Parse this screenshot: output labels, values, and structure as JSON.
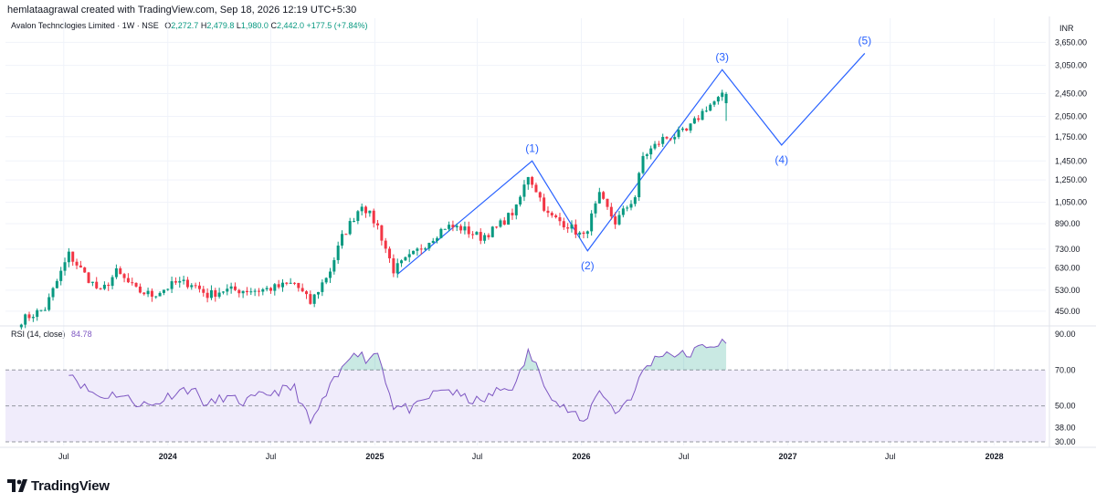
{
  "header": {
    "credit": "hemlataagrawal created with TradingView.com, Sep 18, 2026 12:19 UTC+5:30"
  },
  "legend": {
    "title": "Avalon Technologies Limited · 1W · NSE",
    "o_label": "O",
    "o_value": "2,272.7",
    "h_label": "H",
    "h_value": "2,479.8",
    "l_label": "L",
    "l_value": "1,980.0",
    "c_label": "C",
    "c_value": "2,442.0",
    "change": "+177.5 (+7.84%)"
  },
  "currency": "INR",
  "rsi": {
    "label": "RSI (14, close)",
    "value": "84.78"
  },
  "brand": {
    "name": "TradingView"
  },
  "colors": {
    "up": "#089981",
    "down": "#f23645",
    "rsi_line": "#7e57c2",
    "rsi_band": "#f0ecfb",
    "wave": "#2962ff",
    "grid": "#f0f3fa"
  },
  "chart_data": [
    {
      "type": "candlestick",
      "title": "Avalon Technologies Limited · 1W · NSE",
      "scale": "log",
      "ylim": [
        410,
        4100
      ],
      "y_ticks": [
        450,
        530,
        630,
        730,
        890,
        1050,
        1250,
        1450,
        1750,
        2050,
        2450,
        3050,
        3650
      ],
      "y_tick_labels": [
        "450.00",
        "530.00",
        "630.00",
        "730.00",
        "890.00",
        "1,050.00",
        "1,250.00",
        "1,450.00",
        "1,750.00",
        "2,050.00",
        "2,450.00",
        "3,050.00",
        "3,650.00"
      ],
      "x_range": [
        "2023-03-20",
        "2028-04-01"
      ],
      "x_ticks": [
        "2023-07-01",
        "2024-01-01",
        "2024-07-01",
        "2025-01-01",
        "2025-07-01",
        "2026-01-01",
        "2026-07-01",
        "2027-01-01",
        "2027-07-01",
        "2028-01-01"
      ],
      "x_tick_labels": [
        "Jul",
        "2024",
        "Jul",
        "2025",
        "Jul",
        "2026",
        "Jul",
        "2027",
        "Jul",
        "2028"
      ],
      "waypoints_close": [
        [
          "2023-04-17",
          420
        ],
        [
          "2023-05-29",
          460
        ],
        [
          "2023-07-10",
          700
        ],
        [
          "2023-08-07",
          600
        ],
        [
          "2023-09-04",
          520
        ],
        [
          "2023-10-02",
          610
        ],
        [
          "2023-11-06",
          530
        ],
        [
          "2023-12-04",
          510
        ],
        [
          "2024-01-15",
          560
        ],
        [
          "2024-02-12",
          560
        ],
        [
          "2024-03-11",
          510
        ],
        [
          "2024-04-08",
          530
        ],
        [
          "2024-05-13",
          530
        ],
        [
          "2024-06-10",
          530
        ],
        [
          "2024-07-08",
          540
        ],
        [
          "2024-08-12",
          560
        ],
        [
          "2024-09-09",
          480
        ],
        [
          "2024-10-14",
          620
        ],
        [
          "2024-11-04",
          800
        ],
        [
          "2024-12-09",
          1040
        ],
        [
          "2025-01-06",
          870
        ],
        [
          "2025-02-03",
          620
        ],
        [
          "2025-03-10",
          700
        ],
        [
          "2025-04-07",
          780
        ],
        [
          "2025-05-05",
          870
        ],
        [
          "2025-06-02",
          860
        ],
        [
          "2025-07-07",
          800
        ],
        [
          "2025-08-04",
          860
        ],
        [
          "2025-09-08",
          1000
        ],
        [
          "2025-09-29",
          1300
        ],
        [
          "2025-10-13",
          1160
        ],
        [
          "2025-11-03",
          950
        ],
        [
          "2025-12-08",
          880
        ],
        [
          "2026-01-05",
          800
        ],
        [
          "2026-02-02",
          1100
        ],
        [
          "2026-03-02",
          900
        ],
        [
          "2026-04-06",
          1100
        ],
        [
          "2026-04-20",
          1500
        ],
        [
          "2026-05-25",
          1720
        ],
        [
          "2026-07-06",
          1820
        ],
        [
          "2026-08-10",
          2200
        ],
        [
          "2026-09-14",
          2442
        ]
      ],
      "last_candle": {
        "date": "2026-09-14",
        "open": 2272.7,
        "high": 2479.8,
        "low": 1980.0,
        "close": 2442.0
      },
      "elliott_wave": [
        {
          "label": "",
          "date": "2025-02-10",
          "value": 600
        },
        {
          "label": "(1)",
          "date": "2025-10-06",
          "value": 1450
        },
        {
          "label": "(2)",
          "date": "2026-01-12",
          "value": 720
        },
        {
          "label": "(3)",
          "date": "2026-09-07",
          "value": 2950
        },
        {
          "label": "(4)",
          "date": "2026-12-21",
          "value": 1640
        },
        {
          "label": "(5)",
          "date": "2027-05-17",
          "value": 3350
        }
      ]
    },
    {
      "type": "line",
      "title": "RSI (14, close)",
      "last_value": 84.78,
      "ylim": [
        28,
        93
      ],
      "y_ticks": [
        30,
        38,
        50,
        70,
        90
      ],
      "y_tick_labels": [
        "30.00",
        "38.00",
        "50.00",
        "70.00",
        "90.00"
      ],
      "band": [
        30,
        70
      ],
      "dashed_levels": [
        30,
        50,
        70
      ],
      "waypoints": [
        [
          "2023-07-10",
          70
        ],
        [
          "2023-08-07",
          60
        ],
        [
          "2023-09-04",
          55
        ],
        [
          "2023-10-02",
          57
        ],
        [
          "2023-11-06",
          52
        ],
        [
          "2023-12-04",
          50
        ],
        [
          "2024-01-15",
          58
        ],
        [
          "2024-02-12",
          60
        ],
        [
          "2024-03-11",
          50
        ],
        [
          "2024-04-08",
          55
        ],
        [
          "2024-05-13",
          52
        ],
        [
          "2024-06-10",
          55
        ],
        [
          "2024-07-08",
          58
        ],
        [
          "2024-08-12",
          60
        ],
        [
          "2024-09-09",
          40
        ],
        [
          "2024-10-14",
          60
        ],
        [
          "2024-11-04",
          70
        ],
        [
          "2024-11-25",
          82
        ],
        [
          "2024-12-16",
          76
        ],
        [
          "2025-01-06",
          80
        ],
        [
          "2025-02-03",
          50
        ],
        [
          "2025-03-10",
          48
        ],
        [
          "2025-04-07",
          55
        ],
        [
          "2025-05-05",
          60
        ],
        [
          "2025-06-02",
          55
        ],
        [
          "2025-07-07",
          52
        ],
        [
          "2025-08-04",
          58
        ],
        [
          "2025-09-08",
          62
        ],
        [
          "2025-09-29",
          80
        ],
        [
          "2025-10-20",
          68
        ],
        [
          "2025-11-17",
          52
        ],
        [
          "2025-12-15",
          46
        ],
        [
          "2026-01-05",
          40
        ],
        [
          "2026-02-02",
          60
        ],
        [
          "2026-03-02",
          46
        ],
        [
          "2026-04-06",
          58
        ],
        [
          "2026-04-20",
          70
        ],
        [
          "2026-05-25",
          80
        ],
        [
          "2026-07-06",
          78
        ],
        [
          "2026-08-10",
          84
        ],
        [
          "2026-09-14",
          84.78
        ]
      ]
    }
  ]
}
